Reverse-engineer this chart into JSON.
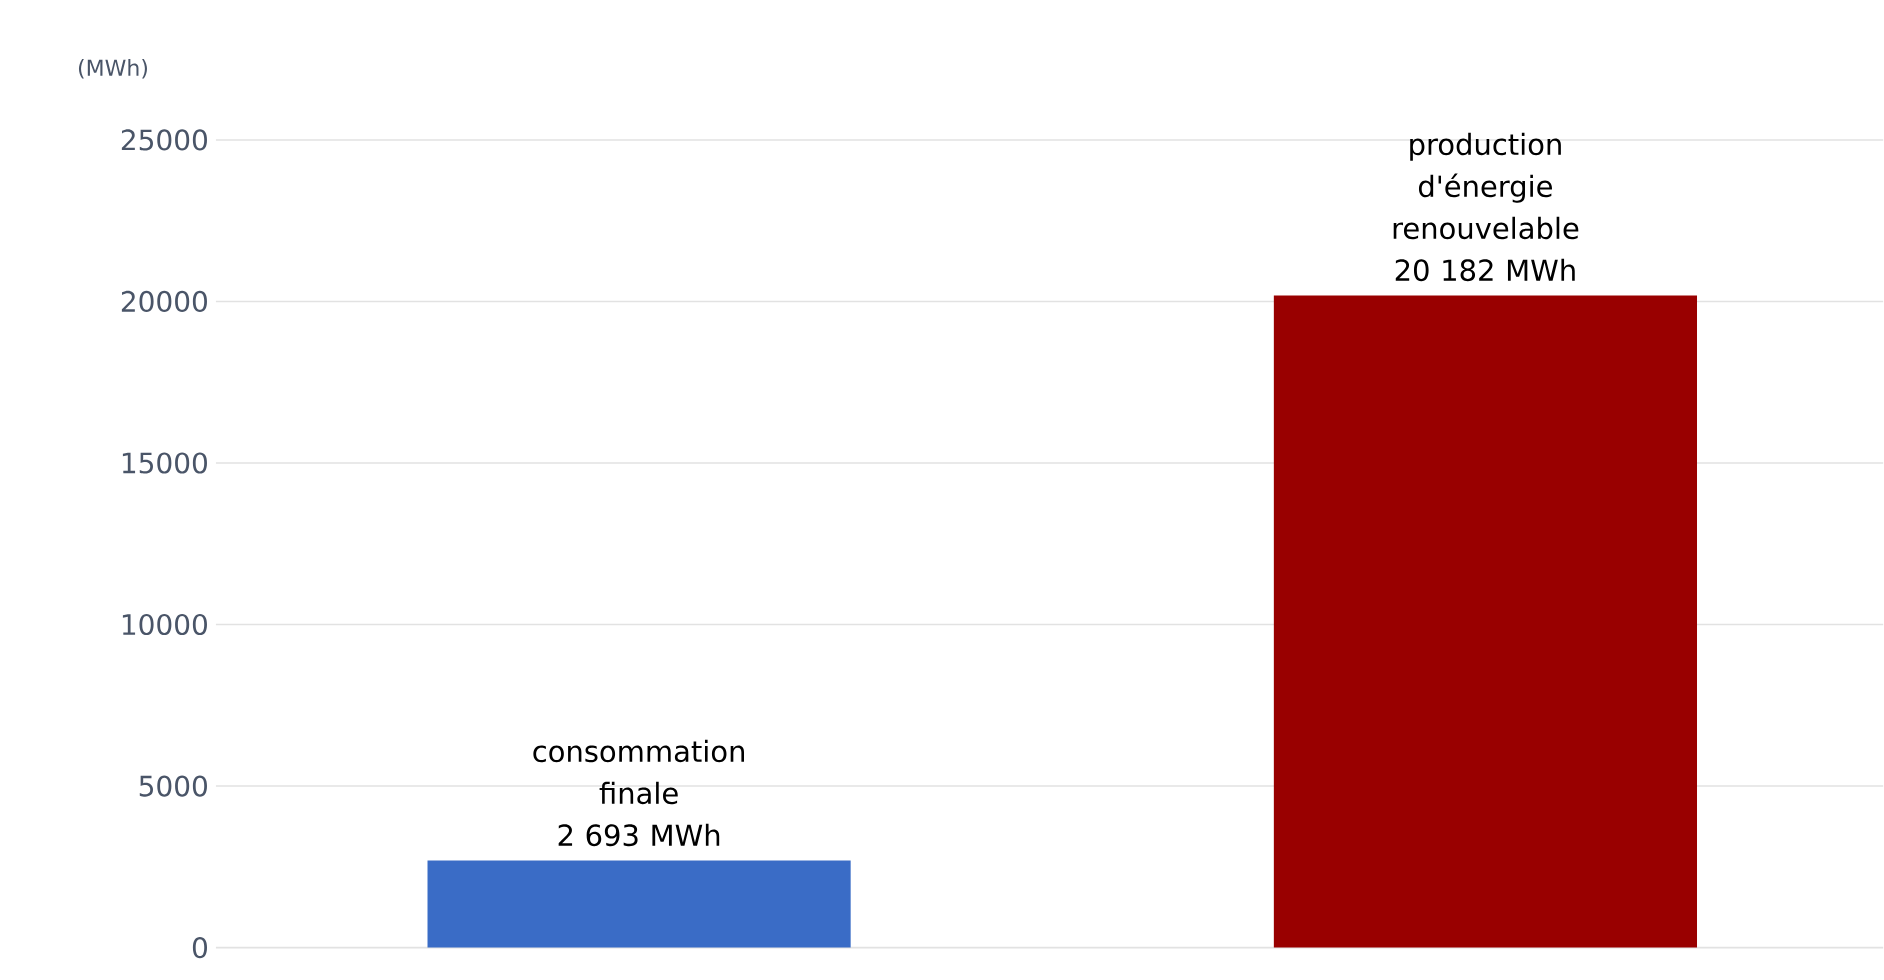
{
  "chart_data": {
    "type": "bar",
    "ylabel": "(MWh)",
    "categories": [
      "consommation finale",
      "production d'énergie renouvelable"
    ],
    "values": [
      2693,
      20182
    ],
    "value_labels": [
      "2 693 MWh",
      "20 182 MWh"
    ],
    "colors": [
      "#3a6cc6",
      "#990000"
    ],
    "ylim": [
      0,
      25000
    ],
    "yticks": [
      0,
      5000,
      10000,
      15000,
      20000,
      25000
    ],
    "grid": "y",
    "tick_labels": "y"
  }
}
